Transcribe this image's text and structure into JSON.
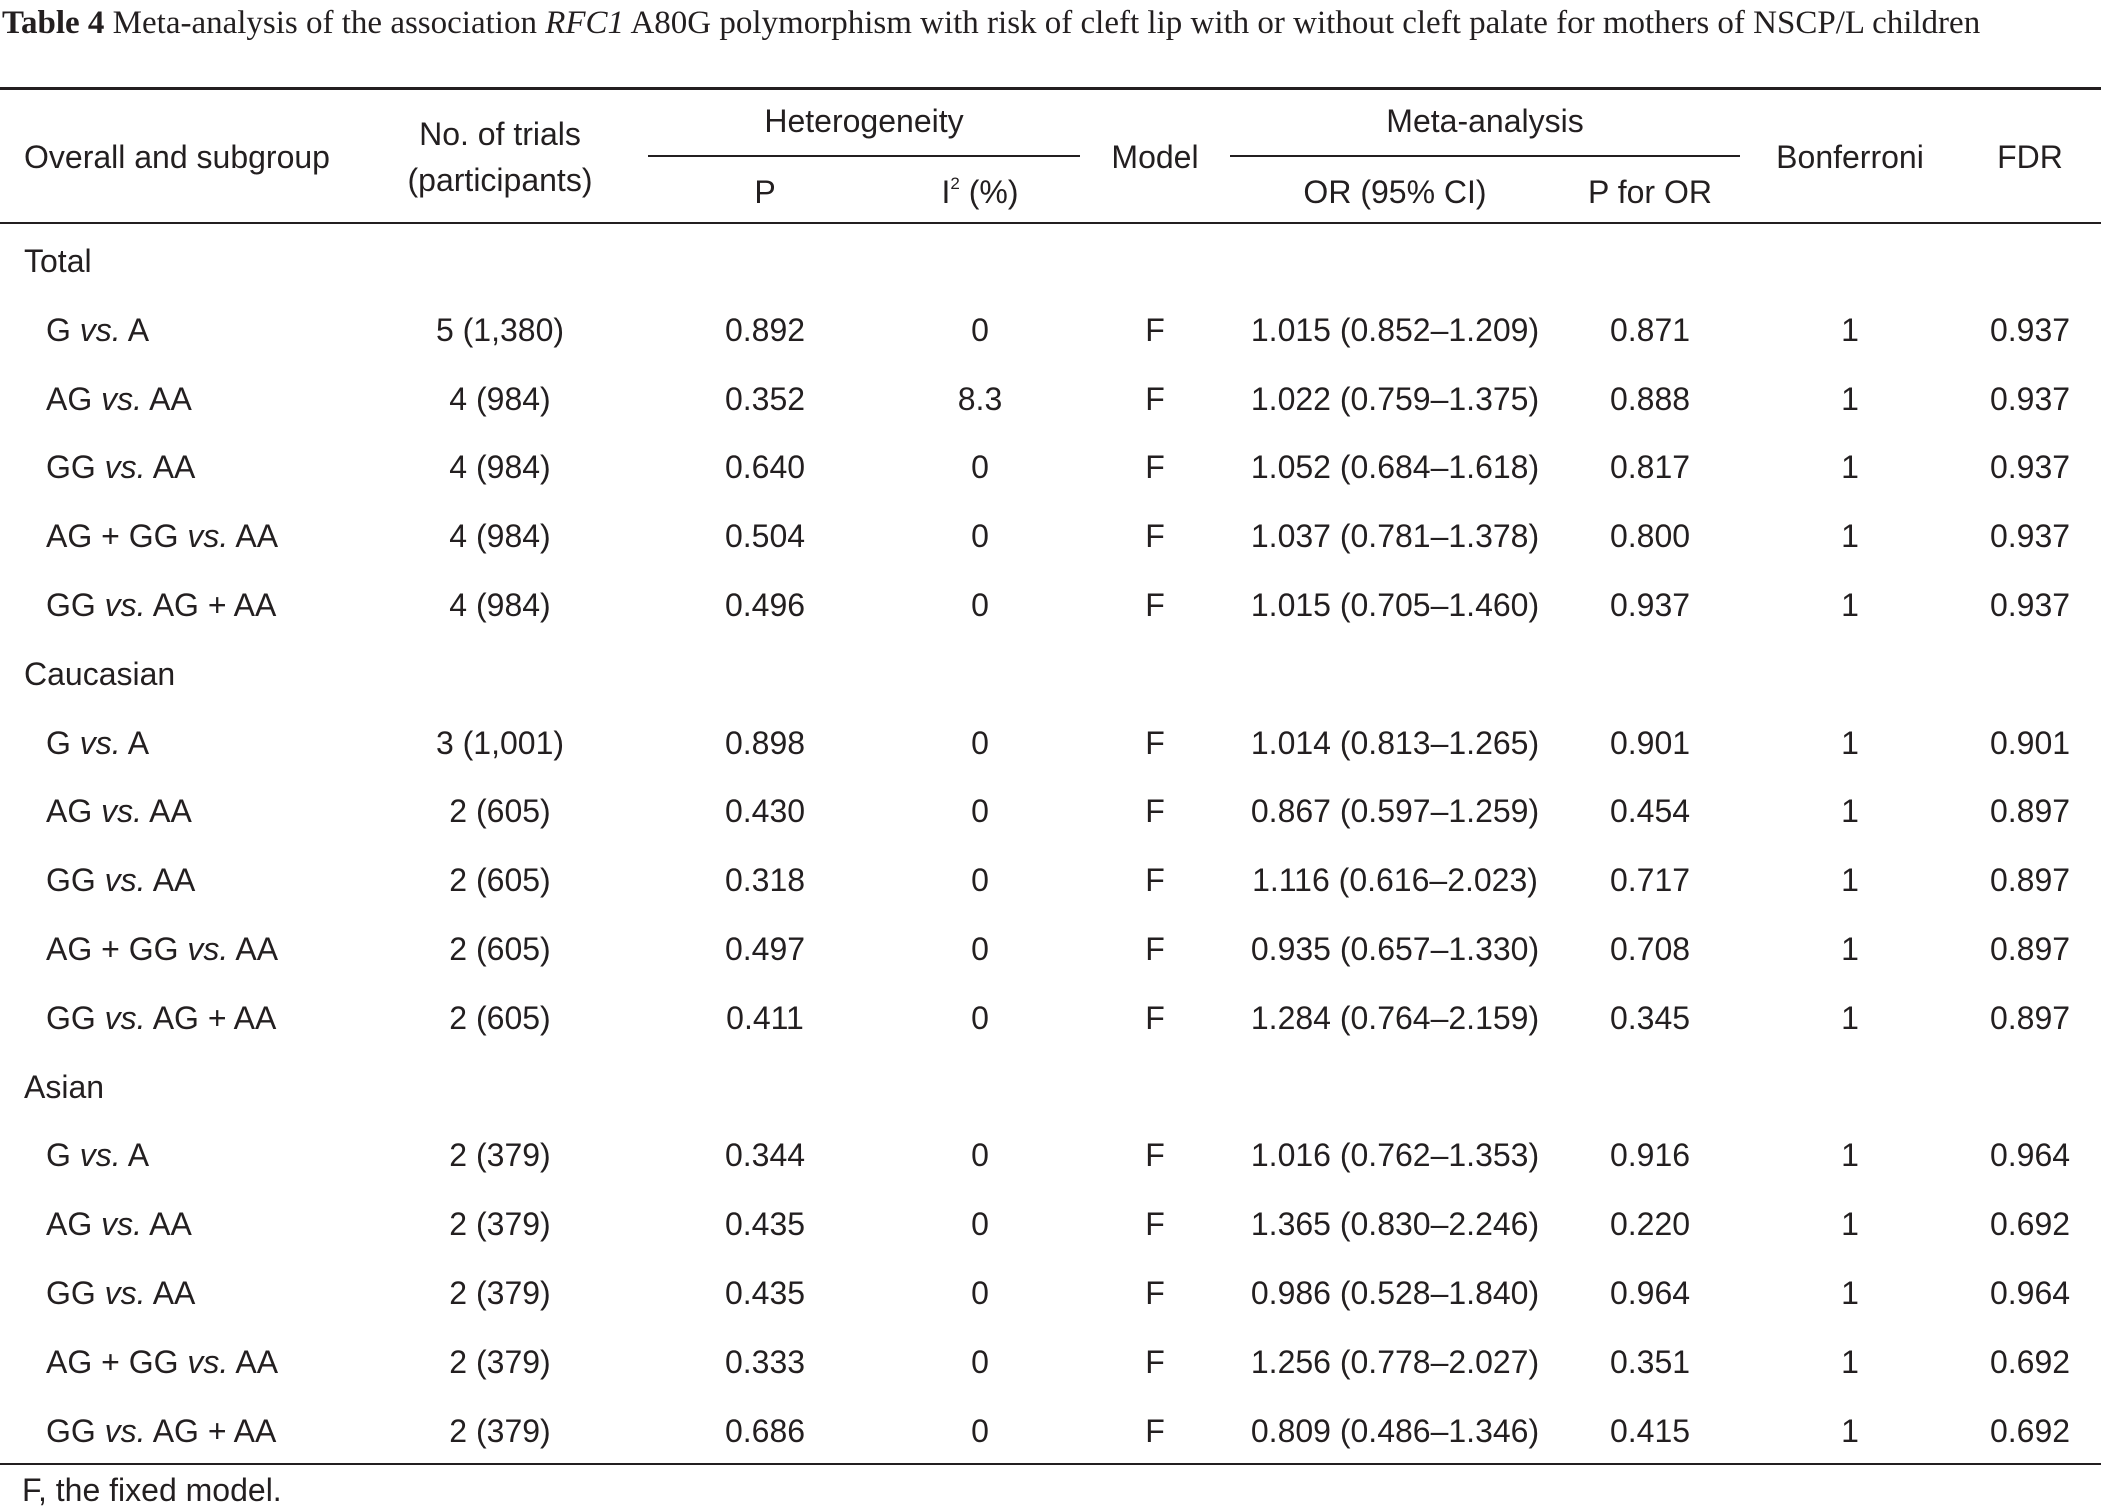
{
  "caption": {
    "label": "Table 4",
    "text_before": " Meta-analysis of the association ",
    "gene": "RFC1",
    "text_after": " A80G polymorphism with risk of cleft lip with or without cleft palate for mothers of NSCP/L children"
  },
  "headers": {
    "group": "Overall and subgroup",
    "trials_line1": "No. of trials",
    "trials_line2": "(participants)",
    "heterogeneity": "Heterogeneity",
    "p": "P",
    "i2_base": "I",
    "i2_sup": "2",
    "i2_unit": " (%)",
    "model": "Model",
    "meta": "Meta-analysis",
    "or": "OR (95% CI)",
    "p_or": "P for OR",
    "bonferroni": "Bonferroni",
    "fdr": "FDR"
  },
  "groups": [
    {
      "name": "Total",
      "rows": [
        {
          "a": "G",
          "b": "A",
          "trials": "5 (1,380)",
          "p": "0.892",
          "i2": "0",
          "model": "F",
          "or": "1.015 (0.852–1.209)",
          "p_or": "0.871",
          "bonf": "1",
          "fdr": "0.937"
        },
        {
          "a": "AG",
          "b": "AA",
          "trials": "4 (984)",
          "p": "0.352",
          "i2": "8.3",
          "model": "F",
          "or": "1.022 (0.759–1.375)",
          "p_or": "0.888",
          "bonf": "1",
          "fdr": "0.937"
        },
        {
          "a": "GG",
          "b": "AA",
          "trials": "4 (984)",
          "p": "0.640",
          "i2": "0",
          "model": "F",
          "or": "1.052 (0.684–1.618)",
          "p_or": "0.817",
          "bonf": "1",
          "fdr": "0.937"
        },
        {
          "a": "AG + GG",
          "b": "AA",
          "trials": "4 (984)",
          "p": "0.504",
          "i2": "0",
          "model": "F",
          "or": "1.037 (0.781–1.378)",
          "p_or": "0.800",
          "bonf": "1",
          "fdr": "0.937"
        },
        {
          "a": "GG",
          "b": "AG + AA",
          "trials": "4 (984)",
          "p": "0.496",
          "i2": "0",
          "model": "F",
          "or": "1.015 (0.705–1.460)",
          "p_or": "0.937",
          "bonf": "1",
          "fdr": "0.937"
        }
      ]
    },
    {
      "name": "Caucasian",
      "rows": [
        {
          "a": "G",
          "b": "A",
          "trials": "3 (1,001)",
          "p": "0.898",
          "i2": "0",
          "model": "F",
          "or": "1.014 (0.813–1.265)",
          "p_or": "0.901",
          "bonf": "1",
          "fdr": "0.901"
        },
        {
          "a": "AG",
          "b": "AA",
          "trials": "2 (605)",
          "p": "0.430",
          "i2": "0",
          "model": "F",
          "or": "0.867 (0.597–1.259)",
          "p_or": "0.454",
          "bonf": "1",
          "fdr": "0.897"
        },
        {
          "a": "GG",
          "b": "AA",
          "trials": "2 (605)",
          "p": "0.318",
          "i2": "0",
          "model": "F",
          "or": "1.116 (0.616–2.023)",
          "p_or": "0.717",
          "bonf": "1",
          "fdr": "0.897"
        },
        {
          "a": "AG + GG",
          "b": "AA",
          "trials": "2 (605)",
          "p": "0.497",
          "i2": "0",
          "model": "F",
          "or": "0.935 (0.657–1.330)",
          "p_or": "0.708",
          "bonf": "1",
          "fdr": "0.897"
        },
        {
          "a": "GG",
          "b": "AG + AA",
          "trials": "2 (605)",
          "p": "0.411",
          "i2": "0",
          "model": "F",
          "or": "1.284 (0.764–2.159)",
          "p_or": "0.345",
          "bonf": "1",
          "fdr": "0.897"
        }
      ]
    },
    {
      "name": "Asian",
      "rows": [
        {
          "a": "G",
          "b": "A",
          "trials": "2 (379)",
          "p": "0.344",
          "i2": "0",
          "model": "F",
          "or": "1.016 (0.762–1.353)",
          "p_or": "0.916",
          "bonf": "1",
          "fdr": "0.964"
        },
        {
          "a": "AG",
          "b": "AA",
          "trials": "2 (379)",
          "p": "0.435",
          "i2": "0",
          "model": "F",
          "or": "1.365 (0.830–2.246)",
          "p_or": "0.220",
          "bonf": "1",
          "fdr": "0.692"
        },
        {
          "a": "GG",
          "b": "AA",
          "trials": "2 (379)",
          "p": "0.435",
          "i2": "0",
          "model": "F",
          "or": "0.986 (0.528–1.840)",
          "p_or": "0.964",
          "bonf": "1",
          "fdr": "0.964"
        },
        {
          "a": "AG + GG",
          "b": "AA",
          "trials": "2 (379)",
          "p": "0.333",
          "i2": "0",
          "model": "F",
          "or": "1.256 (0.778–2.027)",
          "p_or": "0.351",
          "bonf": "1",
          "fdr": "0.692"
        },
        {
          "a": "GG",
          "b": "AG + AA",
          "trials": "2 (379)",
          "p": "0.686",
          "i2": "0",
          "model": "F",
          "or": "0.809 (0.486–1.346)",
          "p_or": "0.415",
          "bonf": "1",
          "fdr": "0.692"
        }
      ]
    }
  ],
  "vs_word": "vs.",
  "footnote": "F, the fixed model."
}
